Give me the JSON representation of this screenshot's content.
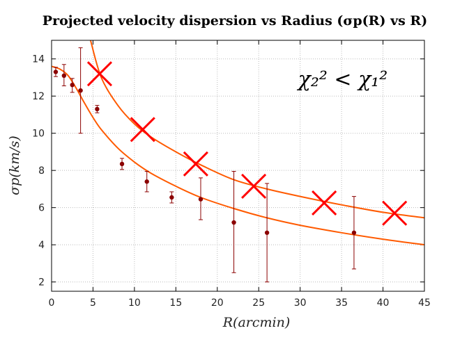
{
  "chart_data": {
    "type": "scatter",
    "title": "Projected velocity dispersion vs Radius (σp(R) vs R)",
    "xlabel": "R(arcmin)",
    "ylabel": "σp(km/s)",
    "annotation": "χ₂² < χ₁²",
    "xlim": [
      0,
      45
    ],
    "ylim": [
      1.5,
      15
    ],
    "x_ticks": [
      0,
      5,
      10,
      15,
      20,
      25,
      30,
      35,
      40,
      45
    ],
    "y_ticks": [
      2,
      4,
      6,
      8,
      10,
      12,
      14
    ],
    "grid": true,
    "colors": {
      "points": "#8b0000",
      "curves": "#ff5a00",
      "crosses": "#ff0000",
      "grid": "#bbbbbb"
    },
    "observed": [
      {
        "x": 0.5,
        "y": 13.3,
        "err_lo": 0.25,
        "err_hi": 0.25
      },
      {
        "x": 1.5,
        "y": 13.1,
        "err_lo": 0.55,
        "err_hi": 0.6
      },
      {
        "x": 2.5,
        "y": 12.6,
        "err_lo": 0.4,
        "err_hi": 0.35
      },
      {
        "x": 3.5,
        "y": 12.3,
        "err_lo": 2.3,
        "err_hi": 2.3
      },
      {
        "x": 5.5,
        "y": 11.3,
        "err_lo": 0.2,
        "err_hi": 0.2
      },
      {
        "x": 8.5,
        "y": 8.35,
        "err_lo": 0.3,
        "err_hi": 0.3
      },
      {
        "x": 11.5,
        "y": 7.4,
        "err_lo": 0.55,
        "err_hi": 0.55
      },
      {
        "x": 14.5,
        "y": 6.55,
        "err_lo": 0.3,
        "err_hi": 0.3
      },
      {
        "x": 18.0,
        "y": 6.45,
        "err_lo": 1.1,
        "err_hi": 1.15
      },
      {
        "x": 22.0,
        "y": 5.2,
        "err_lo": 2.7,
        "err_hi": 2.75
      },
      {
        "x": 26.0,
        "y": 4.65,
        "err_lo": 2.65,
        "err_hi": 2.65
      },
      {
        "x": 36.5,
        "y": 4.65,
        "err_lo": 1.95,
        "err_hi": 1.95
      }
    ],
    "model_points": [
      {
        "x": 5.8,
        "y": 13.2
      },
      {
        "x": 11.0,
        "y": 10.2
      },
      {
        "x": 17.4,
        "y": 8.35
      },
      {
        "x": 24.4,
        "y": 7.15
      },
      {
        "x": 32.9,
        "y": 6.25
      },
      {
        "x": 41.4,
        "y": 5.7
      }
    ],
    "curves": [
      {
        "x": [
          4.7,
          6,
          8,
          10,
          12,
          15,
          18,
          22,
          26,
          30,
          35,
          40,
          45
        ],
        "y": [
          15.0,
          13.0,
          11.5,
          10.5,
          9.8,
          9.0,
          8.3,
          7.5,
          7.0,
          6.6,
          6.15,
          5.75,
          5.45
        ]
      },
      {
        "x": [
          0,
          1,
          2,
          3,
          4,
          5,
          6,
          8,
          10,
          12,
          15,
          18,
          22,
          26,
          30,
          35,
          40,
          45
        ],
        "y": [
          13.6,
          13.45,
          13.1,
          12.4,
          11.6,
          10.85,
          10.2,
          9.2,
          8.45,
          7.85,
          7.15,
          6.55,
          5.95,
          5.45,
          5.05,
          4.65,
          4.3,
          4.0
        ]
      }
    ]
  }
}
